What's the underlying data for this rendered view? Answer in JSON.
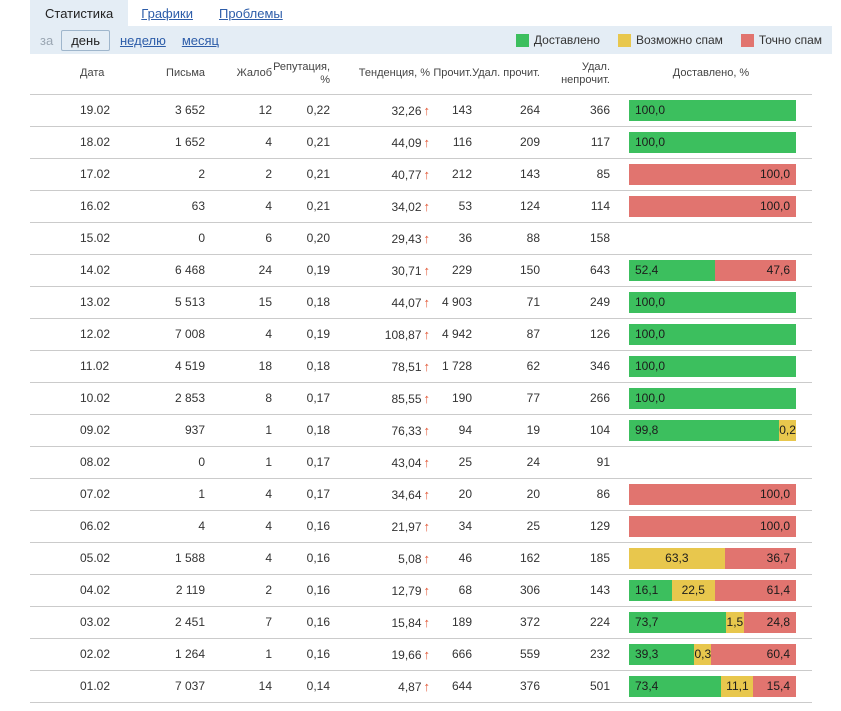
{
  "colors": {
    "delivered": "#3cbf5e",
    "maybe_spam": "#e8c74d",
    "spam": "#e1746f",
    "trend_arrow": "#e25634",
    "toolbar_bg": "#e4edf5",
    "link": "#2d5da9"
  },
  "icons": {
    "trend_up": "↑"
  },
  "tabs": [
    {
      "label": "Статистика",
      "active": true
    },
    {
      "label": "Графики",
      "active": false
    },
    {
      "label": "Проблемы",
      "active": false
    }
  ],
  "period": {
    "label": "за",
    "selected": "день",
    "options": [
      "день",
      "неделю",
      "месяц"
    ]
  },
  "legend": [
    {
      "key": "delivered",
      "label": "Доставлено"
    },
    {
      "key": "maybe_spam",
      "label": "Возможно спам"
    },
    {
      "key": "spam",
      "label": "Точно спам"
    }
  ],
  "table": {
    "columns": [
      "Дата",
      "Письма",
      "Жалоб",
      "Репутация, %",
      "Тенденция, %",
      "Прочит.",
      "Удал. прочит.",
      "Удал. непрочит.",
      "Доставлено, %"
    ],
    "rows": [
      {
        "date": "19.02",
        "letters": "3 652",
        "complaints": "12",
        "reputation": "0,22",
        "trend": "32,26",
        "read": "143",
        "deleted_read": "264",
        "deleted_unread": "366",
        "segments": [
          {
            "type": "delivered",
            "value": 100,
            "label": "100,0"
          }
        ]
      },
      {
        "date": "18.02",
        "letters": "1 652",
        "complaints": "4",
        "reputation": "0,21",
        "trend": "44,09",
        "read": "116",
        "deleted_read": "209",
        "deleted_unread": "117",
        "segments": [
          {
            "type": "delivered",
            "value": 100,
            "label": "100,0"
          }
        ]
      },
      {
        "date": "17.02",
        "letters": "2",
        "complaints": "2",
        "reputation": "0,21",
        "trend": "40,77",
        "read": "212",
        "deleted_read": "143",
        "deleted_unread": "85",
        "segments": [
          {
            "type": "spam",
            "value": 100,
            "label": "100,0"
          }
        ]
      },
      {
        "date": "16.02",
        "letters": "63",
        "complaints": "4",
        "reputation": "0,21",
        "trend": "34,02",
        "read": "53",
        "deleted_read": "124",
        "deleted_unread": "114",
        "segments": [
          {
            "type": "spam",
            "value": 100,
            "label": "100,0"
          }
        ]
      },
      {
        "date": "15.02",
        "letters": "0",
        "complaints": "6",
        "reputation": "0,20",
        "trend": "29,43",
        "read": "36",
        "deleted_read": "88",
        "deleted_unread": "158",
        "segments": []
      },
      {
        "date": "14.02",
        "letters": "6 468",
        "complaints": "24",
        "reputation": "0,19",
        "trend": "30,71",
        "read": "229",
        "deleted_read": "150",
        "deleted_unread": "643",
        "segments": [
          {
            "type": "delivered",
            "value": 52.4,
            "label": "52,4"
          },
          {
            "type": "spam",
            "value": 47.6,
            "label": "47,6"
          }
        ]
      },
      {
        "date": "13.02",
        "letters": "5 513",
        "complaints": "15",
        "reputation": "0,18",
        "trend": "44,07",
        "read": "4 903",
        "deleted_read": "71",
        "deleted_unread": "249",
        "segments": [
          {
            "type": "delivered",
            "value": 100,
            "label": "100,0"
          }
        ]
      },
      {
        "date": "12.02",
        "letters": "7 008",
        "complaints": "4",
        "reputation": "0,19",
        "trend": "108,87",
        "read": "4 942",
        "deleted_read": "87",
        "deleted_unread": "126",
        "segments": [
          {
            "type": "delivered",
            "value": 100,
            "label": "100,0"
          }
        ]
      },
      {
        "date": "11.02",
        "letters": "4 519",
        "complaints": "18",
        "reputation": "0,18",
        "trend": "78,51",
        "read": "1 728",
        "deleted_read": "62",
        "deleted_unread": "346",
        "segments": [
          {
            "type": "delivered",
            "value": 100,
            "label": "100,0"
          }
        ]
      },
      {
        "date": "10.02",
        "letters": "2 853",
        "complaints": "8",
        "reputation": "0,17",
        "trend": "85,55",
        "read": "190",
        "deleted_read": "77",
        "deleted_unread": "266",
        "segments": [
          {
            "type": "delivered",
            "value": 100,
            "label": "100,0"
          }
        ]
      },
      {
        "date": "09.02",
        "letters": "937",
        "complaints": "1",
        "reputation": "0,18",
        "trend": "76,33",
        "read": "94",
        "deleted_read": "19",
        "deleted_unread": "104",
        "segments": [
          {
            "type": "delivered",
            "value": 99.8,
            "label": "99,8"
          },
          {
            "type": "maybe_spam",
            "value": 0.2,
            "label": "0,2"
          }
        ]
      },
      {
        "date": "08.02",
        "letters": "0",
        "complaints": "1",
        "reputation": "0,17",
        "trend": "43,04",
        "read": "25",
        "deleted_read": "24",
        "deleted_unread": "91",
        "segments": []
      },
      {
        "date": "07.02",
        "letters": "1",
        "complaints": "4",
        "reputation": "0,17",
        "trend": "34,64",
        "read": "20",
        "deleted_read": "20",
        "deleted_unread": "86",
        "segments": [
          {
            "type": "spam",
            "value": 100,
            "label": "100,0"
          }
        ]
      },
      {
        "date": "06.02",
        "letters": "4",
        "complaints": "4",
        "reputation": "0,16",
        "trend": "21,97",
        "read": "34",
        "deleted_read": "25",
        "deleted_unread": "129",
        "segments": [
          {
            "type": "spam",
            "value": 100,
            "label": "100,0"
          }
        ]
      },
      {
        "date": "05.02",
        "letters": "1 588",
        "complaints": "4",
        "reputation": "0,16",
        "trend": "5,08",
        "read": "46",
        "deleted_read": "162",
        "deleted_unread": "185",
        "segments": [
          {
            "type": "maybe_spam",
            "value": 63.3,
            "label": "63,3"
          },
          {
            "type": "spam",
            "value": 36.7,
            "label": "36,7"
          }
        ]
      },
      {
        "date": "04.02",
        "letters": "2 119",
        "complaints": "2",
        "reputation": "0,16",
        "trend": "12,79",
        "read": "68",
        "deleted_read": "306",
        "deleted_unread": "143",
        "segments": [
          {
            "type": "delivered",
            "value": 16.1,
            "label": "16,1"
          },
          {
            "type": "maybe_spam",
            "value": 22.5,
            "label": "22,5"
          },
          {
            "type": "spam",
            "value": 61.4,
            "label": "61,4"
          }
        ]
      },
      {
        "date": "03.02",
        "letters": "2 451",
        "complaints": "7",
        "reputation": "0,16",
        "trend": "15,84",
        "read": "189",
        "deleted_read": "372",
        "deleted_unread": "224",
        "segments": [
          {
            "type": "delivered",
            "value": 73.7,
            "label": "73,7"
          },
          {
            "type": "maybe_spam",
            "value": 1.5,
            "label": "1,5"
          },
          {
            "type": "spam",
            "value": 24.8,
            "label": "24,8"
          }
        ]
      },
      {
        "date": "02.02",
        "letters": "1 264",
        "complaints": "1",
        "reputation": "0,16",
        "trend": "19,66",
        "read": "666",
        "deleted_read": "559",
        "deleted_unread": "232",
        "segments": [
          {
            "type": "delivered",
            "value": 39.3,
            "label": "39,3"
          },
          {
            "type": "maybe_spam",
            "value": 0.3,
            "label": "0,3"
          },
          {
            "type": "spam",
            "value": 60.4,
            "label": "60,4"
          }
        ]
      },
      {
        "date": "01.02",
        "letters": "7 037",
        "complaints": "14",
        "reputation": "0,14",
        "trend": "4,87",
        "read": "644",
        "deleted_read": "376",
        "deleted_unread": "501",
        "segments": [
          {
            "type": "delivered",
            "value": 73.4,
            "label": "73,4"
          },
          {
            "type": "maybe_spam",
            "value": 11.1,
            "label": "11,1"
          },
          {
            "type": "spam",
            "value": 15.4,
            "label": "15,4"
          }
        ]
      }
    ]
  }
}
